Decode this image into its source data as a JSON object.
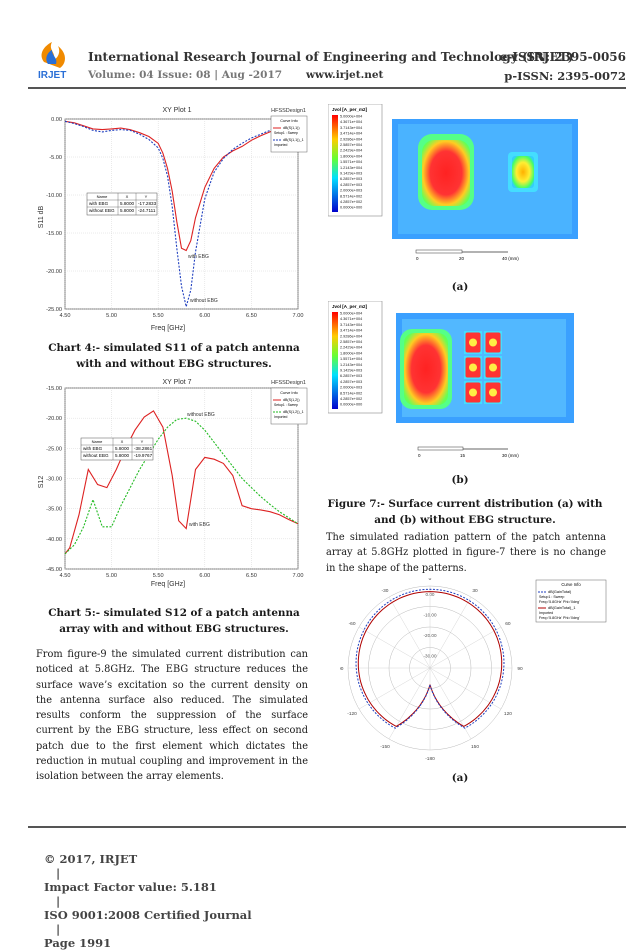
{
  "header": {
    "journal_title": "International Research Journal of Engineering and Technology (IRJET)",
    "e_issn": "e-ISSN: 2395-0056",
    "volume": "Volume: 04 Issue: 08 | Aug -2017",
    "website": "www.irjet.net",
    "p_issn": "p-ISSN: 2395-0072",
    "logo_text": "IRJET"
  },
  "colors": {
    "red": "#dd2222",
    "blue": "#1f3fbf",
    "green": "#22bb22",
    "dark_red": "#b00000"
  },
  "chart4": {
    "plot_title": "XY Plot 1",
    "brand": "HFSSDesign1",
    "legend_title": "Curve Info",
    "legend_1": "dB(S(1,1))",
    "legend_1b": "Setup1 : Sweep",
    "legend_2": "dB(S(1,1))_1",
    "legend_2b": "Imported",
    "table_head": [
      "Name",
      "X",
      "Y"
    ],
    "table_rows": [
      [
        "with EBG",
        "5.8000",
        "-17.2833"
      ],
      [
        "without EBG",
        "5.8000",
        "-24.7111"
      ]
    ],
    "marker_1": "with EBG",
    "marker_2": "without EBG",
    "xlabel": "Freq [GHz]",
    "ylabel": "S11 dB",
    "caption": "Chart 4:- simulated S11 of a patch antenna with and without EBG structures."
  },
  "chart5": {
    "plot_title": "XY Plot 7",
    "brand": "HFSSDesign1",
    "legend_title": "Curve Info",
    "legend_1": "dB(S(1,2))",
    "legend_1b": "Setup1 : Sweep",
    "legend_2": "dB(S(1,2))_1",
    "legend_2b": "Imported",
    "table_head": [
      "Name",
      "X",
      "Y"
    ],
    "table_rows": [
      [
        "with EBG",
        "5.8000",
        "-38.2861"
      ],
      [
        "without EBG",
        "5.8000",
        "-19.9767"
      ]
    ],
    "marker_1": "without EBG",
    "marker_2": "with EBG",
    "xlabel": "Freq [GHz]",
    "ylabel": "S12",
    "caption": "Chart 5:- simulated S12 of a patch antenna array with and without EBG structures."
  },
  "chart_data": [
    {
      "type": "line",
      "title": "XY Plot 1",
      "xlabel": "Freq [GHz]",
      "ylabel": "S11 dB",
      "xlim": [
        4.5,
        7.0
      ],
      "ylim": [
        -25,
        0
      ],
      "xticks": [
        "4.50",
        "5.00",
        "5.50",
        "6.00",
        "6.50",
        "7.00"
      ],
      "yticks": [
        "0.00",
        "-5.00",
        "-10.00",
        "-15.00",
        "-20.00",
        "-25.00"
      ],
      "series": [
        {
          "name": "dB(S(1,1))",
          "color": "#dd2222",
          "x": [
            4.5,
            4.6,
            4.7,
            4.8,
            4.9,
            5.0,
            5.1,
            5.2,
            5.3,
            5.4,
            5.5,
            5.55,
            5.6,
            5.65,
            5.7,
            5.75,
            5.8,
            5.85,
            5.9,
            6.0,
            6.1,
            6.2,
            6.3,
            6.4,
            6.5,
            6.6,
            6.7,
            6.8,
            6.9,
            7.0
          ],
          "y": [
            -0.3,
            -0.5,
            -0.9,
            -1.3,
            -1.4,
            -1.3,
            -1.2,
            -1.4,
            -1.8,
            -2.3,
            -3.2,
            -4.5,
            -6.5,
            -9.5,
            -13.5,
            -17.0,
            -17.3,
            -16.0,
            -13.0,
            -9.0,
            -6.5,
            -5.0,
            -4.2,
            -3.6,
            -2.8,
            -2.2,
            -1.7,
            -1.2,
            -0.8,
            -0.5
          ]
        },
        {
          "name": "dB(S(1,1))_1",
          "color": "#1f3fbf",
          "x": [
            4.5,
            4.6,
            4.7,
            4.8,
            4.9,
            5.0,
            5.1,
            5.2,
            5.3,
            5.4,
            5.5,
            5.55,
            5.6,
            5.65,
            5.7,
            5.75,
            5.8,
            5.85,
            5.9,
            6.0,
            6.1,
            6.2,
            6.3,
            6.4,
            6.5,
            6.6,
            6.7,
            6.8,
            6.9,
            7.0
          ],
          "y": [
            -0.3,
            -0.6,
            -1.0,
            -1.5,
            -1.7,
            -1.5,
            -1.4,
            -1.5,
            -2.0,
            -2.7,
            -3.8,
            -5.2,
            -7.5,
            -11.5,
            -17.0,
            -22.0,
            -24.7,
            -22.5,
            -17.5,
            -10.5,
            -7.0,
            -5.2,
            -4.0,
            -3.2,
            -2.5,
            -2.0,
            -1.5,
            -1.0,
            -0.7,
            -0.4
          ]
        }
      ]
    },
    {
      "type": "line",
      "title": "XY Plot 7",
      "xlabel": "Freq [GHz]",
      "ylabel": "S12",
      "xlim": [
        4.5,
        7.0
      ],
      "ylim": [
        -45,
        -15
      ],
      "xticks": [
        "4.50",
        "5.00",
        "5.50",
        "6.00",
        "6.50",
        "7.00"
      ],
      "yticks": [
        "-15.00",
        "-20.00",
        "-25.00",
        "-30.00",
        "-35.00",
        "-40.00",
        "-45.00"
      ],
      "series": [
        {
          "name": "dB(S(1,2))",
          "color": "#dd2222",
          "x": [
            4.5,
            4.55,
            4.65,
            4.75,
            4.85,
            4.95,
            5.05,
            5.15,
            5.25,
            5.35,
            5.45,
            5.55,
            5.65,
            5.72,
            5.8,
            5.9,
            6.0,
            6.1,
            6.2,
            6.3,
            6.4,
            6.5,
            6.6,
            6.7,
            6.8,
            6.9,
            7.0
          ],
          "y": [
            -42.5,
            -41.5,
            -36.0,
            -28.5,
            -31.0,
            -31.5,
            -28.5,
            -25.0,
            -22.0,
            -19.8,
            -18.8,
            -21.5,
            -29.5,
            -37.0,
            -38.3,
            -28.5,
            -26.5,
            -26.8,
            -27.5,
            -29.5,
            -34.5,
            -35.0,
            -35.2,
            -35.5,
            -36.0,
            -36.8,
            -37.5
          ]
        },
        {
          "name": "dB(S(1,2))_1",
          "color": "#22bb22",
          "x": [
            4.5,
            4.6,
            4.7,
            4.8,
            4.9,
            5.0,
            5.1,
            5.2,
            5.3,
            5.4,
            5.5,
            5.6,
            5.7,
            5.8,
            5.9,
            6.0,
            6.1,
            6.2,
            6.3,
            6.4,
            6.5,
            6.6,
            6.7,
            6.8,
            6.9,
            7.0
          ],
          "y": [
            -42.5,
            -41.0,
            -38.0,
            -33.5,
            -38.0,
            -38.0,
            -34.5,
            -31.5,
            -28.5,
            -26.0,
            -23.5,
            -21.5,
            -20.2,
            -20.0,
            -20.5,
            -22.0,
            -24.0,
            -26.0,
            -28.0,
            -30.0,
            -31.5,
            -33.0,
            -34.3,
            -35.5,
            -36.5,
            -37.5
          ]
        }
      ]
    }
  ],
  "fig7": {
    "label_a": "(a)",
    "label_b": "(b)",
    "colorbar_title_a": "Jvol [A_per_m2]",
    "colorbar_title_b": "Jvol [A_per_m2]",
    "colorbar_values": [
      "5.0000e+004",
      "4.3671e+004",
      "3.7143e+004",
      "3.4714e+004",
      "2.9286e+004",
      "2.5857e+004",
      "2.2429e+004",
      "1.8000e+004",
      "1.5571e+004",
      "1.2143e+004",
      "9.1429e+003",
      "6.2857e+003",
      "4.2857e+003",
      "2.0000e+003",
      "8.5714e+002",
      "4.2857e+002",
      "0.0000e+000"
    ],
    "scale_a": [
      "0",
      "20",
      "40 (mm)"
    ],
    "scale_b": [
      "0",
      "15",
      "30 (mm)"
    ],
    "caption": "Figure 7:- Surface current distribution (a) with and (b) without EBG structure."
  },
  "paragraph_right": "The simulated radiation pattern of the patch antenna array at 5.8GHz plotted in figure-7 there is no change in the shape of the patterns.",
  "polar": {
    "legend_title": "Curve Info",
    "legend_1": "dB(GainTotal)",
    "legend_1b": "Setup1 : Sweep",
    "legend_1c": "Freq='5.8GHz' Phi='0deg'",
    "legend_2": "dB(GainTotal)_1",
    "legend_2b": "Imported",
    "legend_2c": "Freq='5.8GHz' Phi='0deg'",
    "angles": [
      "0",
      "30",
      "-30",
      "60",
      "-60",
      "90",
      "-90",
      "120",
      "-120",
      "150",
      "-150",
      "-180"
    ],
    "rings": [
      "0.00",
      "-10.00",
      "-20.00",
      "-30.00"
    ],
    "label_a": "(a)"
  },
  "paragraph_left": "From figure-9 the simulated current distribution can noticed at 5.8GHz. The EBG structure reduces the surface wave’s excitation so the current density on the antenna surface also reduced. The simulated results conform the suppression of the surface current by the EBG structure, less effect on second patch due to the first element which dictates the reduction in mutual coupling and improvement in the isolation between the array elements.",
  "footer": {
    "copyright": "© 2017, IRJET",
    "impact": "Impact Factor value: 5.181",
    "iso": "ISO 9001:2008 Certified Journal",
    "page": "Page 1991"
  }
}
